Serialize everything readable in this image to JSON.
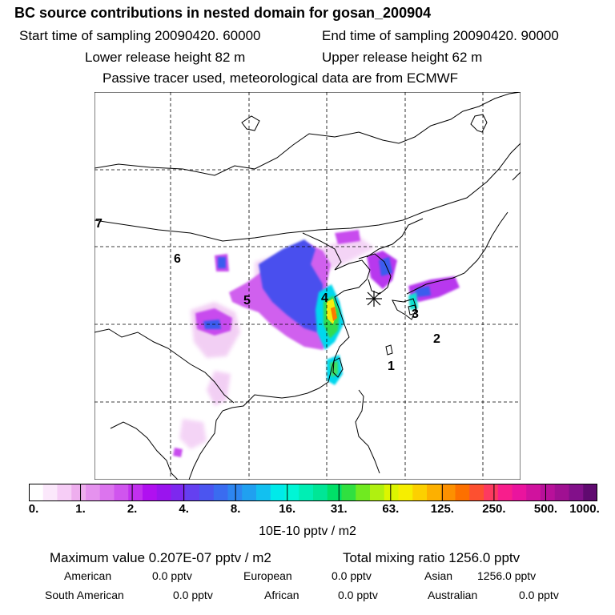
{
  "header": {
    "title": "BC  source contributions in nested domain for gosan_200904",
    "start_time": "Start time of sampling 20090420. 60000",
    "end_time": "End time of sampling 20090420. 90000",
    "lower_height": "Lower release height   82 m",
    "upper_height": "Upper release height   62 m",
    "tracer_note": "Passive tracer used, meteorological data are from ECMWF"
  },
  "chart_data": {
    "type": "heatmap",
    "grid": "on",
    "receptor_marker": "asterisk",
    "region_labels": [
      "1",
      "2",
      "3",
      "4",
      "5",
      "6",
      "7"
    ],
    "colorbar": {
      "ticks": [
        "0.",
        "1.",
        "2.",
        "4.",
        "8.",
        "16.",
        "31.",
        "63.",
        "125.",
        "250.",
        "500.",
        "1000."
      ],
      "unit": "10E-10 pptv / m2",
      "colors": [
        "#ffffff",
        "#fbe8fb",
        "#f6cdf6",
        "#eeaeee",
        "#e592ee",
        "#dc74ee",
        "#d055ee",
        "#c230ee",
        "#b010f0",
        "#9a14ee",
        "#7d28ef",
        "#6440f0",
        "#4b55f0",
        "#3a6cf0",
        "#2d86f0",
        "#20a0f0",
        "#12c0f0",
        "#00eaea",
        "#00f6d6",
        "#00eeb4",
        "#00e696",
        "#00e068",
        "#30e040",
        "#70ea20",
        "#b0f010",
        "#dcf500",
        "#f6ee00",
        "#fcd000",
        "#fdb000",
        "#fd9000",
        "#fd7000",
        "#fd5030",
        "#fd3a60",
        "#f81e8c",
        "#ea149e",
        "#d0129e",
        "#b8109a",
        "#a01092",
        "#82108a",
        "#600a70"
      ]
    }
  },
  "stats": {
    "max_label": "Maximum value  0.207E-07 pptv / m2",
    "total_label": "Total mixing ratio     1256.0 pptv",
    "rows": [
      [
        {
          "label": "American",
          "value": "0.0 pptv"
        },
        {
          "label": "European",
          "value": "0.0 pptv"
        },
        {
          "label": "Asian",
          "value": "1256.0 pptv"
        }
      ],
      [
        {
          "label": "South American",
          "value": "0.0 pptv"
        },
        {
          "label": "African",
          "value": "0.0 pptv"
        },
        {
          "label": "Australian",
          "value": "0.0 pptv"
        }
      ]
    ]
  }
}
